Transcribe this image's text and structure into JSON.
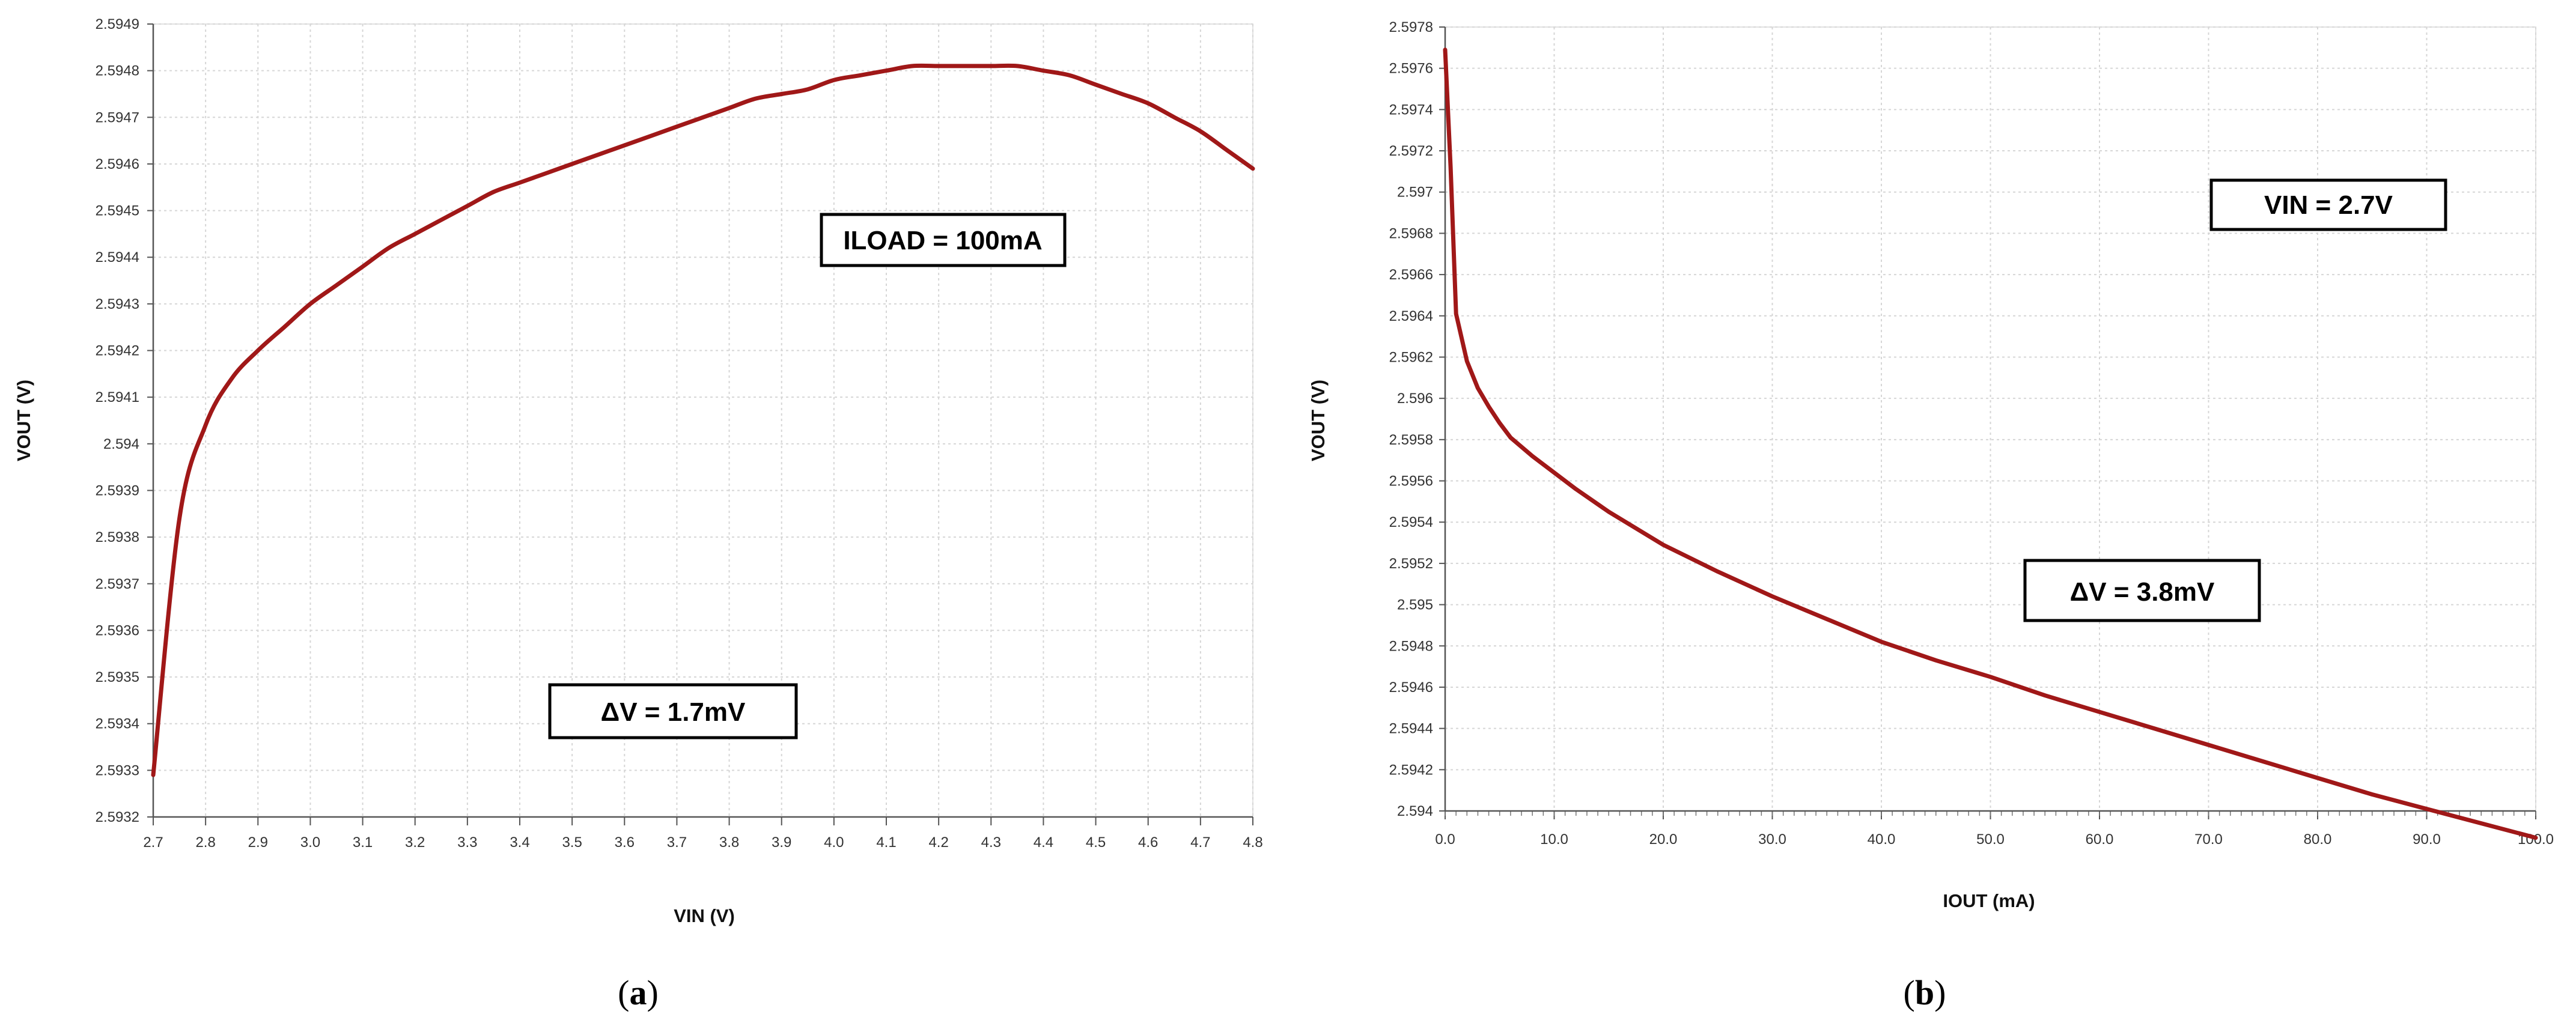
{
  "chart_data": [
    {
      "panel": "(a)",
      "type": "line",
      "xlabel": "VIN (V)",
      "ylabel": "VOUT (V)",
      "xlim": [
        2.7,
        4.8
      ],
      "ylim": [
        2.5932,
        2.5949
      ],
      "xticks": [
        "2.7",
        "2.8",
        "2.9",
        "3.0",
        "3.1",
        "3.2",
        "3.3",
        "3.4",
        "3.5",
        "3.6",
        "3.7",
        "3.8",
        "3.9",
        "4.0",
        "4.1",
        "4.2",
        "4.3",
        "4.4",
        "4.5",
        "4.6",
        "4.7",
        "4.8"
      ],
      "yticks": [
        "2.5932",
        "2.5933",
        "2.5934",
        "2.5935",
        "2.5936",
        "2.5937",
        "2.5938",
        "2.5939",
        "2.594",
        "2.5941",
        "2.5942",
        "2.5943",
        "2.5944",
        "2.5945",
        "2.5946",
        "2.5947",
        "2.5948",
        "2.5949"
      ],
      "grid": true,
      "series": [
        {
          "color": "#a01818",
          "x": [
            2.7,
            2.75,
            2.8,
            2.85,
            2.9,
            2.95,
            3.0,
            3.05,
            3.1,
            3.15,
            3.2,
            3.25,
            3.3,
            3.35,
            3.4,
            3.45,
            3.5,
            3.55,
            3.6,
            3.65,
            3.7,
            3.75,
            3.8,
            3.85,
            3.9,
            3.95,
            4.0,
            4.05,
            4.1,
            4.15,
            4.2,
            4.25,
            4.3,
            4.35,
            4.4,
            4.45,
            4.5,
            4.55,
            4.6,
            4.65,
            4.7,
            4.75,
            4.8
          ],
          "y": [
            2.59329,
            2.59384,
            2.59404,
            2.59414,
            2.5942,
            2.59425,
            2.5943,
            2.59434,
            2.59438,
            2.59442,
            2.59445,
            2.59448,
            2.59451,
            2.59454,
            2.59456,
            2.59458,
            2.5946,
            2.59462,
            2.59464,
            2.59466,
            2.59468,
            2.5947,
            2.59472,
            2.59474,
            2.59475,
            2.59476,
            2.59478,
            2.59479,
            2.5948,
            2.59481,
            2.59481,
            2.59481,
            2.59481,
            2.59481,
            2.5948,
            2.59479,
            2.59477,
            2.59475,
            2.59473,
            2.5947,
            2.59467,
            2.59463,
            2.59459
          ]
        }
      ],
      "annotations": [
        "ILOAD = 100mA",
        "ΔV = 1.7mV"
      ]
    },
    {
      "panel": "(b)",
      "type": "line",
      "xlabel": "IOUT (mA)",
      "ylabel": "VOUT (V)",
      "xlim": [
        0,
        100
      ],
      "ylim": [
        2.594,
        2.5978
      ],
      "xticks": [
        "0.0",
        "10.0",
        "20.0",
        "30.0",
        "40.0",
        "50.0",
        "60.0",
        "70.0",
        "80.0",
        "90.0",
        "100.0"
      ],
      "yticks": [
        "2.594",
        "2.5942",
        "2.5944",
        "2.5946",
        "2.5948",
        "2.595",
        "2.5952",
        "2.5954",
        "2.5956",
        "2.5958",
        "2.596",
        "2.5962",
        "2.5964",
        "2.5966",
        "2.5968",
        "2.597",
        "2.5972",
        "2.5974",
        "2.5976",
        "2.5978"
      ],
      "grid": true,
      "series": [
        {
          "color": "#a01818",
          "x": [
            0,
            0.5,
            1,
            2,
            3,
            4,
            5,
            6,
            8,
            10,
            12,
            15,
            20,
            25,
            30,
            35,
            40,
            45,
            50,
            55,
            60,
            65,
            70,
            75,
            80,
            85,
            90,
            95,
            100
          ],
          "y": [
            2.59769,
            2.59712,
            2.59641,
            2.59618,
            2.59605,
            2.59596,
            2.59588,
            2.59581,
            2.59572,
            2.59564,
            2.59556,
            2.59545,
            2.59529,
            2.59516,
            2.59504,
            2.59493,
            2.59482,
            2.59473,
            2.59465,
            2.59456,
            2.59448,
            2.5944,
            2.59432,
            2.59424,
            2.59416,
            2.59408,
            2.59401,
            2.59394,
            2.59387
          ]
        }
      ],
      "annotations": [
        "VIN = 2.7V",
        "ΔV = 3.8mV"
      ]
    }
  ]
}
